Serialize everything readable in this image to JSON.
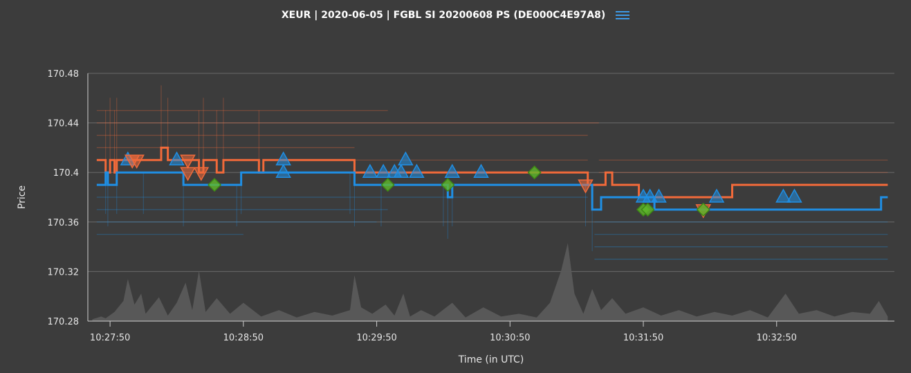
{
  "chart_data": {
    "type": "line",
    "title": "XEUR | 2020-06-05 | FGBL SI 20200608 PS (DE000C4E97A8)",
    "xlabel": "Time (in UTC)",
    "ylabel": "Price",
    "y_ticks": [
      "170.48",
      "170.44",
      "170.4",
      "170.36",
      "170.32",
      "170.28"
    ],
    "ylim": [
      170.28,
      170.48
    ],
    "x_ticks": [
      "10:27:50",
      "10:28:50",
      "10:29:50",
      "10:30:50",
      "10:31:50",
      "10:32:50"
    ],
    "xlim": [
      "10:27:40",
      "10:33:43"
    ],
    "grid": "horizontal",
    "colors": {
      "bid": "#1f8fe5",
      "ask": "#f26a3a",
      "trade": "#5fb82a",
      "volume": "#5a5a5a",
      "grid": "#6a6a6a",
      "background": "#3c3c3c"
    },
    "series": [
      {
        "key": "best_ask",
        "points": [
          [
            "10:27:44",
            170.41
          ],
          [
            "10:27:48",
            170.4
          ],
          [
            "10:27:50",
            170.41
          ],
          [
            "10:27:52",
            170.4
          ],
          [
            "10:27:53",
            170.41
          ],
          [
            "10:28:13",
            170.42
          ],
          [
            "10:28:16",
            170.41
          ],
          [
            "10:28:30",
            170.4
          ],
          [
            "10:28:32",
            170.41
          ],
          [
            "10:28:38",
            170.4
          ],
          [
            "10:28:41",
            170.41
          ],
          [
            "10:28:57",
            170.4
          ],
          [
            "10:28:59",
            170.41
          ],
          [
            "10:29:40",
            170.4
          ],
          [
            "10:30:25",
            170.4
          ],
          [
            "10:31:20",
            170.4
          ],
          [
            "10:31:25",
            170.39
          ],
          [
            "10:31:33",
            170.4
          ],
          [
            "10:31:36",
            170.39
          ],
          [
            "10:31:48",
            170.38
          ],
          [
            "10:32:30",
            170.39
          ],
          [
            "10:33:40",
            170.39
          ]
        ]
      },
      {
        "key": "best_bid",
        "points": [
          [
            "10:27:44",
            170.39
          ],
          [
            "10:27:48",
            170.4
          ],
          [
            "10:27:49",
            170.39
          ],
          [
            "10:27:53",
            170.4
          ],
          [
            "10:28:05",
            170.4
          ],
          [
            "10:28:23",
            170.39
          ],
          [
            "10:28:47",
            170.39
          ],
          [
            "10:28:49",
            170.4
          ],
          [
            "10:29:38",
            170.4
          ],
          [
            "10:29:40",
            170.39
          ],
          [
            "10:29:52",
            170.39
          ],
          [
            "10:30:20",
            170.39
          ],
          [
            "10:30:22",
            170.38
          ],
          [
            "10:30:24",
            170.39
          ],
          [
            "10:31:24",
            170.39
          ],
          [
            "10:31:27",
            170.37
          ],
          [
            "10:31:31",
            170.38
          ],
          [
            "10:31:55",
            170.37
          ],
          [
            "10:33:35",
            170.37
          ],
          [
            "10:33:37",
            170.38
          ],
          [
            "10:33:40",
            170.38
          ]
        ]
      },
      {
        "key": "ask_depth",
        "levels": [
          170.42,
          170.43,
          170.44,
          170.45,
          170.41,
          170.41,
          170.4,
          170.39
        ],
        "ranges": [
          [
            "10:27:44",
            "10:29:40"
          ],
          [
            "10:27:44",
            "10:31:25"
          ],
          [
            "10:27:44",
            "10:31:30"
          ],
          [
            "10:27:44",
            "10:29:55"
          ],
          [
            "10:29:40",
            "10:31:25"
          ],
          [
            "10:31:30",
            "10:33:40"
          ],
          [
            "10:31:30",
            "10:33:40"
          ],
          [
            "10:32:30",
            "10:33:40"
          ]
        ]
      },
      {
        "key": "bid_depth",
        "levels": [
          170.38,
          170.37,
          170.36,
          170.35,
          170.36,
          170.35,
          170.34,
          170.33
        ],
        "ranges": [
          [
            "10:27:44",
            "10:31:25"
          ],
          [
            "10:27:44",
            "10:29:55"
          ],
          [
            "10:27:44",
            "10:29:50"
          ],
          [
            "10:27:44",
            "10:28:50"
          ],
          [
            "10:31:28",
            "10:33:40"
          ],
          [
            "10:31:28",
            "10:33:40"
          ],
          [
            "10:31:28",
            "10:33:40"
          ],
          [
            "10:31:28",
            "10:33:40"
          ]
        ]
      },
      {
        "key": "volume",
        "points": [
          [
            "10:27:42",
            0.02
          ],
          [
            "10:27:46",
            0.05
          ],
          [
            "10:27:48",
            0.03
          ],
          [
            "10:27:52",
            0.1
          ],
          [
            "10:27:56",
            0.22
          ],
          [
            "10:27:58",
            0.46
          ],
          [
            "10:28:01",
            0.18
          ],
          [
            "10:28:04",
            0.3
          ],
          [
            "10:28:06",
            0.08
          ],
          [
            "10:28:12",
            0.26
          ],
          [
            "10:28:16",
            0.06
          ],
          [
            "10:28:20",
            0.2
          ],
          [
            "10:28:24",
            0.42
          ],
          [
            "10:28:27",
            0.12
          ],
          [
            "10:28:30",
            0.55
          ],
          [
            "10:28:33",
            0.1
          ],
          [
            "10:28:38",
            0.25
          ],
          [
            "10:28:44",
            0.08
          ],
          [
            "10:28:50",
            0.2
          ],
          [
            "10:28:58",
            0.05
          ],
          [
            "10:29:06",
            0.12
          ],
          [
            "10:29:14",
            0.04
          ],
          [
            "10:29:22",
            0.1
          ],
          [
            "10:29:30",
            0.06
          ],
          [
            "10:29:38",
            0.12
          ],
          [
            "10:29:40",
            0.5
          ],
          [
            "10:29:43",
            0.15
          ],
          [
            "10:29:48",
            0.08
          ],
          [
            "10:29:54",
            0.18
          ],
          [
            "10:29:58",
            0.06
          ],
          [
            "10:30:02",
            0.3
          ],
          [
            "10:30:05",
            0.05
          ],
          [
            "10:30:10",
            0.12
          ],
          [
            "10:30:16",
            0.05
          ],
          [
            "10:30:24",
            0.2
          ],
          [
            "10:30:30",
            0.04
          ],
          [
            "10:30:38",
            0.15
          ],
          [
            "10:30:46",
            0.05
          ],
          [
            "10:30:54",
            0.08
          ],
          [
            "10:31:02",
            0.04
          ],
          [
            "10:31:08",
            0.2
          ],
          [
            "10:31:13",
            0.55
          ],
          [
            "10:31:16",
            0.85
          ],
          [
            "10:31:19",
            0.3
          ],
          [
            "10:31:23",
            0.08
          ],
          [
            "10:31:27",
            0.35
          ],
          [
            "10:31:31",
            0.12
          ],
          [
            "10:31:36",
            0.25
          ],
          [
            "10:31:42",
            0.08
          ],
          [
            "10:31:50",
            0.15
          ],
          [
            "10:31:58",
            0.06
          ],
          [
            "10:32:06",
            0.12
          ],
          [
            "10:32:14",
            0.05
          ],
          [
            "10:32:22",
            0.1
          ],
          [
            "10:32:30",
            0.06
          ],
          [
            "10:32:38",
            0.12
          ],
          [
            "10:32:46",
            0.04
          ],
          [
            "10:32:54",
            0.3
          ],
          [
            "10:33:00",
            0.08
          ],
          [
            "10:33:08",
            0.12
          ],
          [
            "10:33:16",
            0.05
          ],
          [
            "10:33:24",
            0.1
          ],
          [
            "10:33:32",
            0.08
          ],
          [
            "10:33:36",
            0.22
          ],
          [
            "10:33:40",
            0.05
          ]
        ]
      }
    ],
    "markers": {
      "bid_up": [
        [
          "10:27:58",
          170.41
        ],
        [
          "10:28:20",
          170.41
        ],
        [
          "10:29:08",
          170.41
        ],
        [
          "10:29:08",
          170.4
        ],
        [
          "10:29:47",
          170.4
        ],
        [
          "10:29:53",
          170.4
        ],
        [
          "10:29:58",
          170.4
        ],
        [
          "10:30:01",
          170.4
        ],
        [
          "10:30:03",
          170.41
        ],
        [
          "10:30:08",
          170.4
        ],
        [
          "10:30:24",
          170.4
        ],
        [
          "10:30:37",
          170.4
        ],
        [
          "10:31:50",
          170.38
        ],
        [
          "10:31:53",
          170.38
        ],
        [
          "10:31:57",
          170.38
        ],
        [
          "10:32:23",
          170.38
        ],
        [
          "10:32:53",
          170.38
        ],
        [
          "10:32:58",
          170.38
        ]
      ],
      "ask_down": [
        [
          "10:28:00",
          170.41
        ],
        [
          "10:28:02",
          170.41
        ],
        [
          "10:28:25",
          170.41
        ],
        [
          "10:28:25",
          170.4
        ],
        [
          "10:28:31",
          170.4
        ],
        [
          "10:31:24",
          170.39
        ],
        [
          "10:32:17",
          170.37
        ]
      ],
      "trade": [
        [
          "10:28:37",
          170.39
        ],
        [
          "10:29:55",
          170.39
        ],
        [
          "10:30:22",
          170.39
        ],
        [
          "10:31:01",
          170.4
        ],
        [
          "10:31:50",
          170.37
        ],
        [
          "10:31:52",
          170.37
        ],
        [
          "10:32:17",
          170.37
        ]
      ]
    }
  }
}
